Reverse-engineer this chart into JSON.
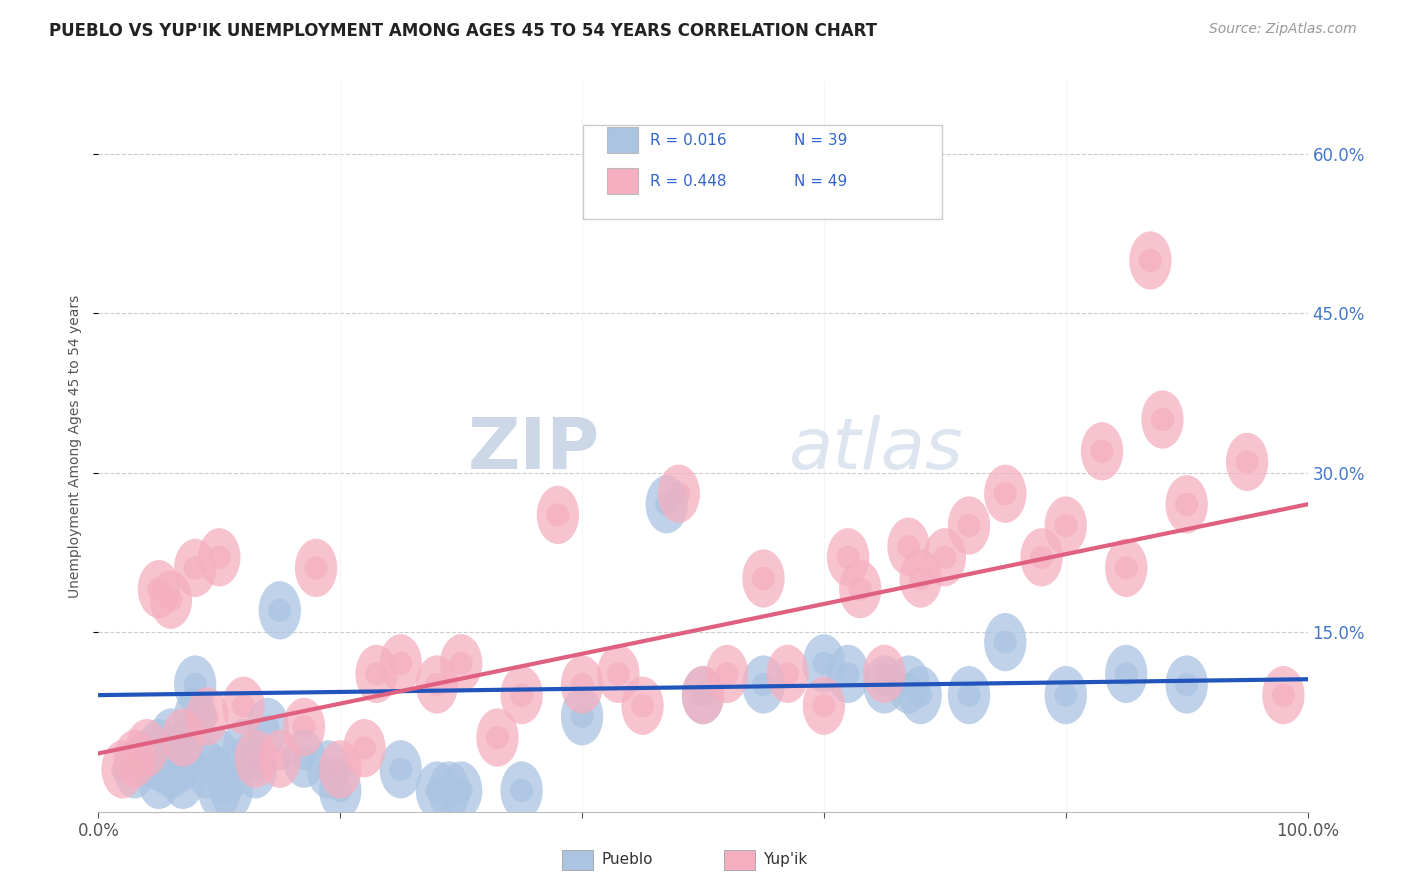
{
  "title": "PUEBLO VS YUP'IK UNEMPLOYMENT AMONG AGES 45 TO 54 YEARS CORRELATION CHART",
  "source": "Source: ZipAtlas.com",
  "ylabel": "Unemployment Among Ages 45 to 54 years",
  "xlim": [
    0,
    100
  ],
  "ylim": [
    -2,
    67
  ],
  "ytick_labels": [
    "15.0%",
    "30.0%",
    "45.0%",
    "60.0%"
  ],
  "ytick_vals": [
    15,
    30,
    45,
    60
  ],
  "legend_r1": "0.016",
  "legend_n1": "39",
  "legend_r2": "0.448",
  "legend_n2": "49",
  "pueblo_color": "#aac4e2",
  "yupik_color": "#f5afc0",
  "pueblo_line_color": "#2255bb",
  "yupik_line_color": "#e06080",
  "background_color": "#ffffff",
  "watermark_zip": "ZIP",
  "watermark_atlas": "atlas",
  "pueblo_x": [
    3,
    4,
    5,
    5,
    6,
    6,
    7,
    7,
    8,
    8,
    9,
    10,
    10,
    11,
    12,
    13,
    14,
    15,
    17,
    19,
    20,
    25,
    28,
    29,
    30,
    35,
    40,
    47,
    50,
    55,
    60,
    62,
    65,
    67,
    68,
    72,
    75,
    80,
    85,
    90
  ],
  "pueblo_y": [
    2,
    3,
    1,
    4,
    2,
    5,
    1,
    3,
    7,
    10,
    2,
    0,
    3,
    0,
    4,
    2,
    6,
    17,
    3,
    2,
    0,
    2,
    0,
    0,
    0,
    0,
    7,
    27,
    9,
    10,
    12,
    11,
    10,
    10,
    9,
    9,
    14,
    9,
    11,
    10
  ],
  "yupik_x": [
    2,
    3,
    4,
    5,
    6,
    7,
    8,
    9,
    10,
    12,
    13,
    15,
    17,
    18,
    20,
    22,
    23,
    25,
    28,
    30,
    33,
    35,
    38,
    40,
    43,
    45,
    48,
    50,
    52,
    55,
    57,
    60,
    62,
    63,
    65,
    67,
    68,
    70,
    72,
    75,
    78,
    80,
    83,
    85,
    87,
    88,
    90,
    95,
    98
  ],
  "yupik_y": [
    2,
    3,
    4,
    19,
    18,
    5,
    21,
    7,
    22,
    8,
    3,
    3,
    6,
    21,
    2,
    4,
    11,
    12,
    10,
    12,
    5,
    9,
    26,
    10,
    11,
    8,
    28,
    9,
    11,
    20,
    11,
    8,
    22,
    19,
    11,
    23,
    20,
    22,
    25,
    28,
    22,
    25,
    32,
    21,
    50,
    35,
    27,
    31,
    9
  ],
  "blue_line_x0": 0,
  "blue_line_y0": 9.0,
  "blue_line_x1": 100,
  "blue_line_y1": 10.5,
  "pink_line_x0": 0,
  "pink_line_y0": 3.5,
  "pink_line_x1": 100,
  "pink_line_y1": 27.0
}
